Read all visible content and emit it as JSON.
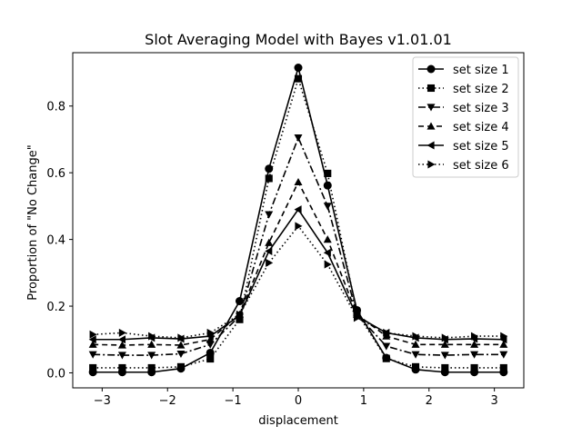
{
  "chart_data": {
    "type": "line",
    "title": "Slot Averaging Model with Bayes v1.01.01",
    "xlabel": "displacement",
    "ylabel": "Proportion of \"No Change\"",
    "xlim": [
      -3.45,
      3.45
    ],
    "ylim": [
      -0.045,
      0.96
    ],
    "xticks": [
      -3,
      -2,
      -1,
      0,
      1,
      2,
      3
    ],
    "xtick_labels": [
      "−3",
      "−2",
      "−1",
      "0",
      "1",
      "2",
      "3"
    ],
    "yticks": [
      0.0,
      0.2,
      0.4,
      0.6,
      0.8
    ],
    "ytick_labels": [
      "0.0",
      "0.2",
      "0.4",
      "0.6",
      "0.8"
    ],
    "grid": false,
    "legend_position": "top-right",
    "x": [
      -3.1416,
      -2.6928,
      -2.244,
      -1.7952,
      -1.3464,
      -0.8976,
      -0.4488,
      0.0,
      0.4488,
      0.8976,
      1.3464,
      1.7952,
      2.244,
      2.6928,
      3.1416
    ],
    "series": [
      {
        "name": "set size 1",
        "marker": "circle",
        "dash": "solid",
        "values": [
          0.002,
          0.002,
          0.002,
          0.013,
          0.06,
          0.215,
          0.612,
          0.915,
          0.562,
          0.188,
          0.045,
          0.01,
          0.002,
          0.002,
          0.002
        ]
      },
      {
        "name": "set size 2",
        "marker": "square",
        "dash": "dotted",
        "values": [
          0.015,
          0.015,
          0.015,
          0.018,
          0.042,
          0.16,
          0.583,
          0.882,
          0.598,
          0.18,
          0.043,
          0.018,
          0.015,
          0.015,
          0.015
        ]
      },
      {
        "name": "set size 3",
        "marker": "triangle-down",
        "dash": "dashdot",
        "values": [
          0.055,
          0.053,
          0.053,
          0.057,
          0.085,
          0.17,
          0.475,
          0.705,
          0.5,
          0.175,
          0.08,
          0.055,
          0.053,
          0.055,
          0.055
        ]
      },
      {
        "name": "set size 4",
        "marker": "triangle-up",
        "dash": "dashed",
        "values": [
          0.085,
          0.083,
          0.085,
          0.083,
          0.1,
          0.175,
          0.39,
          0.572,
          0.4,
          0.175,
          0.11,
          0.085,
          0.085,
          0.085,
          0.085
        ]
      },
      {
        "name": "set size 5",
        "marker": "triangle-left",
        "dash": "solid",
        "values": [
          0.1,
          0.1,
          0.105,
          0.102,
          0.11,
          0.172,
          0.365,
          0.49,
          0.36,
          0.17,
          0.12,
          0.105,
          0.1,
          0.102,
          0.1
        ]
      },
      {
        "name": "set size 6",
        "marker": "triangle-right",
        "dash": "dotted",
        "values": [
          0.115,
          0.12,
          0.11,
          0.105,
          0.12,
          0.175,
          0.33,
          0.44,
          0.325,
          0.165,
          0.12,
          0.11,
          0.105,
          0.11,
          0.11
        ]
      }
    ]
  }
}
